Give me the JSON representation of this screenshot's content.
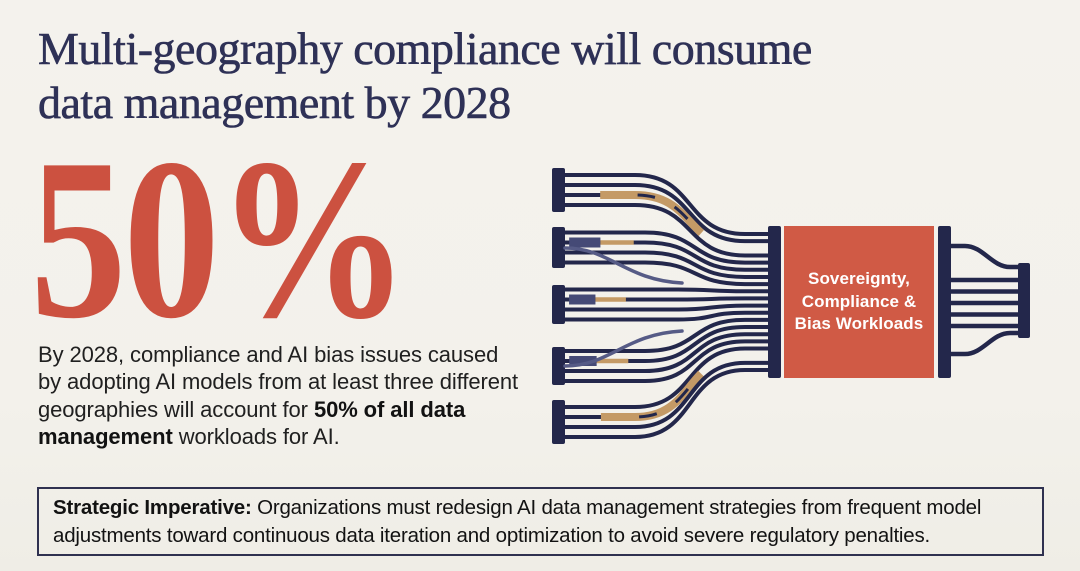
{
  "headline": {
    "line1": "Multi-geography compliance will consume",
    "line2": "data management by 2028"
  },
  "stat": {
    "value": "50%"
  },
  "paragraph": {
    "text_before": "By 2028, compliance and AI bias issues caused by adopting AI models from at least three different geographies will account for ",
    "text_bold": "50% of all data management",
    "text_after": " workloads for AI."
  },
  "diagram": {
    "description": "cables-merging-into-processor-illustration",
    "box_label_lines": [
      "Sovereignty,",
      "Compliance &",
      "Bias Workloads"
    ]
  },
  "strategic_imperative": {
    "label": "Strategic Imperative:",
    "text": " Organizations must redesign AI data management strategies from frequent model adjustments toward continuous data iteration and optimization to avoid severe regulatory penalties."
  },
  "colors": {
    "background": "#f3f1ec",
    "headline_navy": "#2e3156",
    "accent_red": "#cc5140",
    "box_red": "#d05a45",
    "wire_navy": "#23274b",
    "wire_tan": "#c49a66",
    "wire_indigo": "#454a76",
    "stub_indigo": "#565b86",
    "body_text": "#202020",
    "border_navy": "#2f3150"
  }
}
